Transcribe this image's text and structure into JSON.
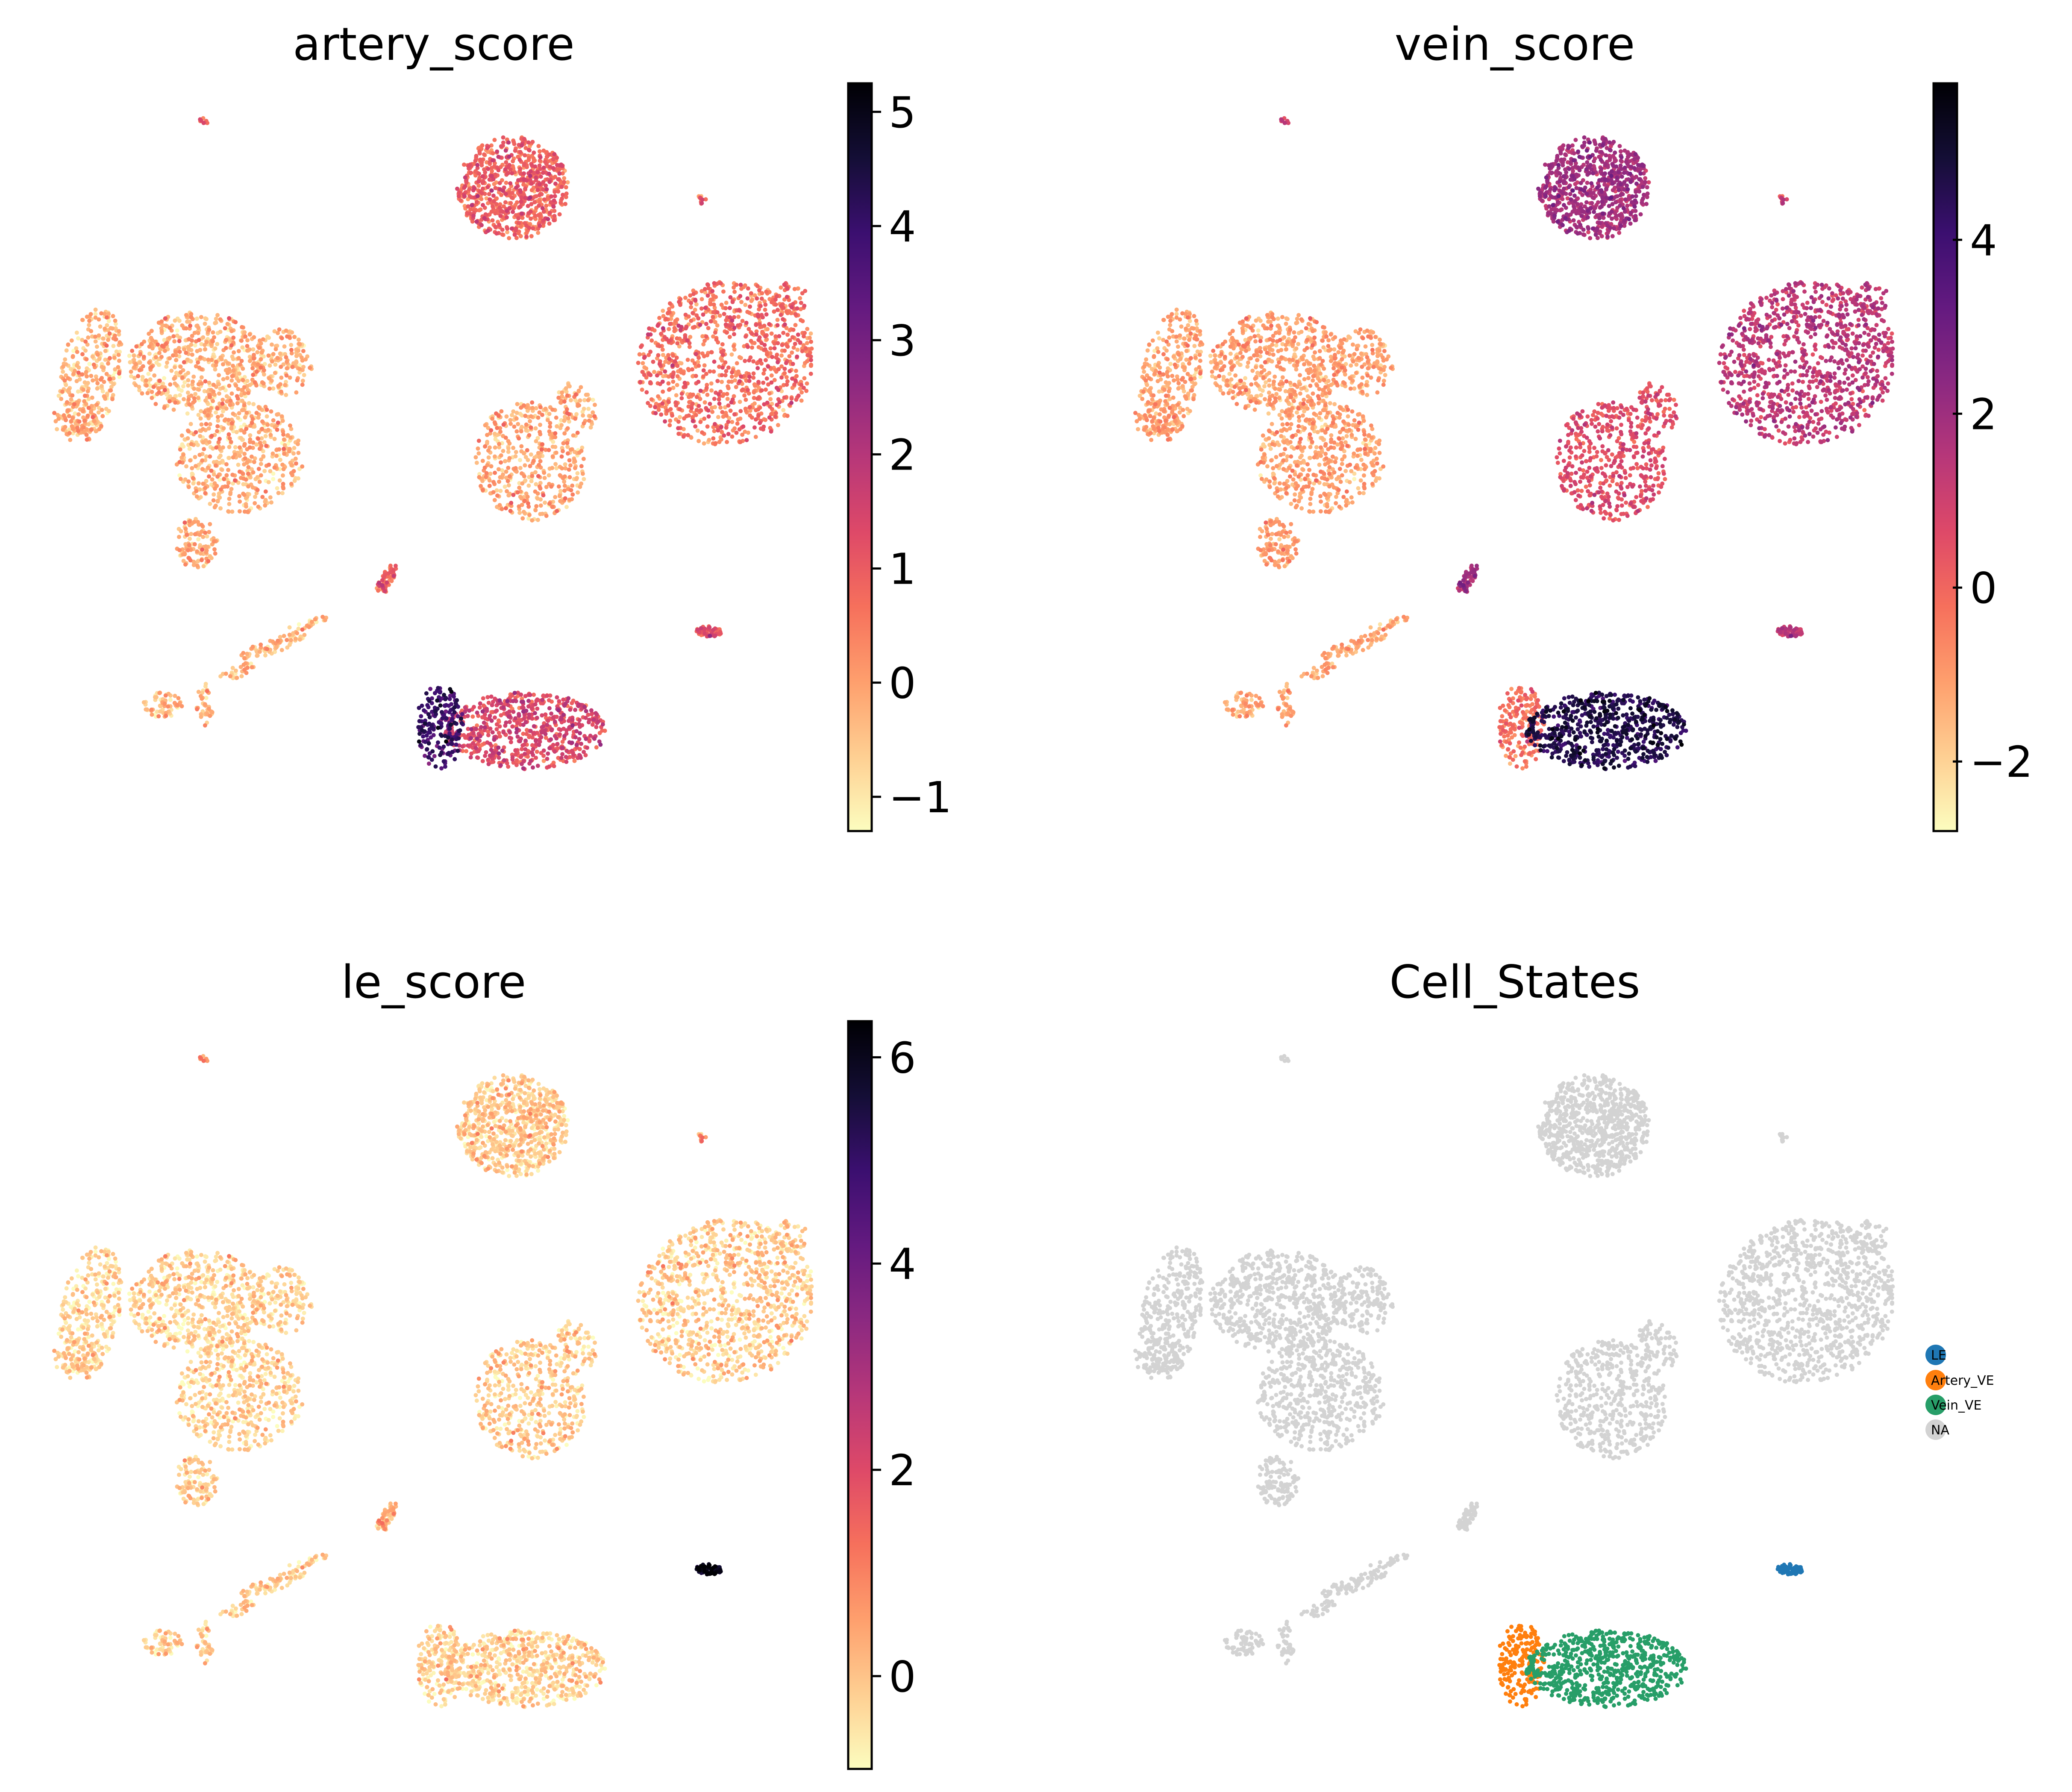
{
  "chart_data": [
    {
      "type": "scatter",
      "title": "artery_score",
      "colormap": "magma_r",
      "colorbar": {
        "range": [
          -1.3,
          5.25
        ],
        "ticks": [
          -1,
          0,
          1,
          2,
          3,
          4,
          5
        ],
        "tick_labels": [
          "−1",
          "0",
          "1",
          "2",
          "3",
          "4",
          "5"
        ]
      },
      "xlabel": "",
      "ylabel": "",
      "axes_visible": false,
      "cluster_values": {
        "top_blob": 0.8,
        "right_blob": 0.6,
        "mid_blob": -0.2,
        "left_group": -0.3,
        "thin_streak": 0.8,
        "small_right": 1.0,
        "bottom_left_tail": -0.4,
        "bottom_blob_left": 3.9,
        "bottom_blob_right": 1.3,
        "small_top": 0.9
      }
    },
    {
      "type": "scatter",
      "title": "vein_score",
      "colormap": "magma_r",
      "colorbar": {
        "range": [
          -2.8,
          5.8
        ],
        "ticks": [
          -2,
          0,
          2,
          4
        ],
        "tick_labels": [
          "−2",
          "0",
          "2",
          "4"
        ]
      },
      "xlabel": "",
      "ylabel": "",
      "axes_visible": false,
      "cluster_values": {
        "top_blob": 1.8,
        "right_blob": 1.3,
        "mid_blob": 0.5,
        "left_group": -1.2,
        "thin_streak": 1.8,
        "small_right": 1.2,
        "bottom_left_tail": -1.3,
        "bottom_blob_left": -0.3,
        "bottom_blob_right": 4.6,
        "small_top": 1.0
      }
    },
    {
      "type": "scatter",
      "title": "le_score",
      "colormap": "magma_r",
      "colorbar": {
        "range": [
          -0.9,
          6.35
        ],
        "ticks": [
          0,
          2,
          4,
          6
        ],
        "tick_labels": [
          "0",
          "2",
          "4",
          "6"
        ]
      },
      "xlabel": "",
      "ylabel": "",
      "axes_visible": false,
      "cluster_values": {
        "top_blob": -0.2,
        "right_blob": -0.2,
        "mid_blob": -0.2,
        "left_group": -0.3,
        "thin_streak": 0.2,
        "small_right": 6.0,
        "bottom_left_tail": -0.2,
        "bottom_blob_left": -0.3,
        "bottom_blob_right": -0.3,
        "small_top": 0.8
      }
    },
    {
      "type": "scatter",
      "title": "Cell_States",
      "xlabel": "",
      "ylabel": "",
      "axes_visible": false,
      "legend": {
        "placement": "right",
        "entries": [
          {
            "label": "LE",
            "color": "#1f77b4"
          },
          {
            "label": "Artery_VE",
            "color": "#ff7f0e"
          },
          {
            "label": "Vein_VE",
            "color": "#279e68"
          },
          {
            "label": "NA",
            "color": "#d3d3d3"
          }
        ]
      },
      "cluster_categories": {
        "top_blob": "NA",
        "right_blob": "NA",
        "mid_blob": "NA",
        "left_group": "NA",
        "thin_streak": "NA",
        "small_right": "LE",
        "bottom_left_tail": "NA",
        "bottom_blob_left": "Artery_VE",
        "bottom_blob_right": "Vein_VE",
        "small_top": "NA"
      }
    }
  ]
}
